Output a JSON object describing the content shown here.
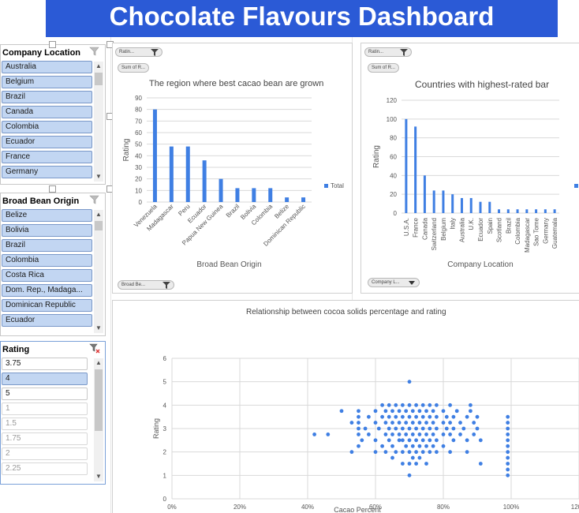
{
  "page": {
    "title": "Chocolate Flavours Dashboard"
  },
  "colors": {
    "accent": "#2b5ad6",
    "bar": "#3f7fe3",
    "slicer_selected": "#c2d6f2"
  },
  "slicers": {
    "company_location": {
      "title": "Company Location",
      "items": [
        "Australia",
        "Belgium",
        "Brazil",
        "Canada",
        "Colombia",
        "Ecuador",
        "France",
        "Germany"
      ]
    },
    "broad_bean_origin": {
      "title": "Broad Bean Origin",
      "items": [
        "Belize",
        "Bolivia",
        "Brazil",
        "Colombia",
        "Costa Rica",
        "Dom. Rep., Madaga...",
        "Dominican Republic",
        "Ecuador"
      ]
    },
    "rating": {
      "title": "Rating",
      "items": [
        {
          "label": "3.75",
          "state": "plain"
        },
        {
          "label": "4",
          "state": "selected"
        },
        {
          "label": "5",
          "state": "plain"
        },
        {
          "label": "1",
          "state": "dim"
        },
        {
          "label": "1.5",
          "state": "dim"
        },
        {
          "label": "1.75",
          "state": "dim"
        },
        {
          "label": "2",
          "state": "dim"
        },
        {
          "label": "2.25",
          "state": "dim"
        }
      ]
    }
  },
  "field_buttons": {
    "chart1_rating": "Ratin...",
    "chart1_sum": "Sum of R...",
    "chart1_axis": "Broad Be...",
    "chart2_rating": "Ratin...",
    "chart2_sum": "Sum of R...",
    "chart2_axis": "Company L..."
  },
  "chart_data": [
    {
      "type": "bar",
      "title": "The region where best cacao bean are grown",
      "xlabel": "Broad Bean Origin",
      "ylabel": "Rating",
      "ylim": [
        0,
        90
      ],
      "yticks": [
        0,
        10,
        20,
        30,
        40,
        50,
        60,
        70,
        80,
        90
      ],
      "categories": [
        "Venezuela",
        "Madagascar",
        "Peru",
        "Ecuador",
        "Papua New Guinea",
        "Brazil",
        "Bolivia",
        "Colombia",
        "Belize",
        "Dominican Republic"
      ],
      "series": [
        {
          "name": "Total",
          "values": [
            80,
            48,
            48,
            36,
            20,
            12,
            12,
            12,
            4,
            4
          ]
        }
      ],
      "legend": "right",
      "grid": true
    },
    {
      "type": "bar",
      "title": "Countries with highest-rated bar",
      "xlabel": "Company Location",
      "ylabel": "Rating",
      "ylim": [
        0,
        120
      ],
      "yticks": [
        0,
        20,
        40,
        60,
        80,
        100,
        120
      ],
      "categories": [
        "U.S.A.",
        "France",
        "Canada",
        "Switzerland",
        "Belgium",
        "Italy",
        "Australia",
        "U.K.",
        "Ecuador",
        "Spain",
        "Scotland",
        "Brazil",
        "Colombia",
        "Madagascar",
        "Sao Tome",
        "Germany",
        "Guatemala"
      ],
      "series": [
        {
          "name": "T",
          "values": [
            100,
            92,
            40,
            24,
            24,
            20,
            16,
            16,
            12,
            12,
            4,
            4,
            4,
            4,
            4,
            4,
            4
          ]
        }
      ],
      "legend": "right",
      "grid": true
    },
    {
      "type": "scatter",
      "title": "Relationship between cocoa solids percentage and rating",
      "xlabel": "Cacao Percent",
      "ylabel": "Rating",
      "xlim": [
        0,
        1.2
      ],
      "ylim": [
        0,
        6
      ],
      "xticks": [
        "0%",
        "20%",
        "40%",
        "60%",
        "80%",
        "100%",
        "120%"
      ],
      "yticks": [
        0,
        1,
        2,
        3,
        4,
        5,
        6
      ],
      "grid": true,
      "points": [
        [
          0.42,
          2.75
        ],
        [
          0.46,
          2.75
        ],
        [
          0.5,
          3.75
        ],
        [
          0.53,
          2.0
        ],
        [
          0.53,
          3.25
        ],
        [
          0.55,
          2.25
        ],
        [
          0.55,
          2.75
        ],
        [
          0.55,
          3.0
        ],
        [
          0.55,
          3.25
        ],
        [
          0.55,
          3.5
        ],
        [
          0.55,
          3.75
        ],
        [
          0.56,
          2.5
        ],
        [
          0.57,
          3.0
        ],
        [
          0.58,
          2.75
        ],
        [
          0.58,
          3.5
        ],
        [
          0.6,
          2.0
        ],
        [
          0.6,
          2.5
        ],
        [
          0.6,
          3.25
        ],
        [
          0.6,
          3.75
        ],
        [
          0.61,
          3.0
        ],
        [
          0.62,
          2.25
        ],
        [
          0.62,
          3.5
        ],
        [
          0.62,
          4.0
        ],
        [
          0.63,
          2.0
        ],
        [
          0.63,
          2.75
        ],
        [
          0.63,
          3.25
        ],
        [
          0.63,
          3.75
        ],
        [
          0.64,
          2.5
        ],
        [
          0.64,
          3.0
        ],
        [
          0.64,
          3.5
        ],
        [
          0.64,
          4.0
        ],
        [
          0.65,
          1.75
        ],
        [
          0.65,
          2.25
        ],
        [
          0.65,
          2.75
        ],
        [
          0.65,
          3.25
        ],
        [
          0.65,
          3.75
        ],
        [
          0.66,
          2.0
        ],
        [
          0.66,
          3.0
        ],
        [
          0.66,
          3.5
        ],
        [
          0.66,
          4.0
        ],
        [
          0.67,
          2.5
        ],
        [
          0.67,
          2.75
        ],
        [
          0.67,
          3.25
        ],
        [
          0.67,
          3.75
        ],
        [
          0.68,
          1.5
        ],
        [
          0.68,
          2.0
        ],
        [
          0.68,
          2.5
        ],
        [
          0.68,
          3.0
        ],
        [
          0.68,
          3.5
        ],
        [
          0.68,
          4.0
        ],
        [
          0.69,
          2.25
        ],
        [
          0.69,
          2.75
        ],
        [
          0.69,
          3.25
        ],
        [
          0.69,
          3.75
        ],
        [
          0.7,
          1.0
        ],
        [
          0.7,
          1.5
        ],
        [
          0.7,
          2.0
        ],
        [
          0.7,
          2.5
        ],
        [
          0.7,
          3.0
        ],
        [
          0.7,
          3.5
        ],
        [
          0.7,
          4.0
        ],
        [
          0.7,
          5.0
        ],
        [
          0.71,
          1.75
        ],
        [
          0.71,
          2.25
        ],
        [
          0.71,
          2.75
        ],
        [
          0.71,
          3.25
        ],
        [
          0.71,
          3.75
        ],
        [
          0.72,
          1.5
        ],
        [
          0.72,
          2.0
        ],
        [
          0.72,
          2.5
        ],
        [
          0.72,
          3.0
        ],
        [
          0.72,
          3.5
        ],
        [
          0.72,
          4.0
        ],
        [
          0.73,
          1.75
        ],
        [
          0.73,
          2.25
        ],
        [
          0.73,
          2.75
        ],
        [
          0.73,
          3.25
        ],
        [
          0.73,
          3.75
        ],
        [
          0.74,
          2.0
        ],
        [
          0.74,
          2.5
        ],
        [
          0.74,
          3.0
        ],
        [
          0.74,
          3.5
        ],
        [
          0.74,
          4.0
        ],
        [
          0.75,
          1.5
        ],
        [
          0.75,
          2.25
        ],
        [
          0.75,
          2.75
        ],
        [
          0.75,
          3.25
        ],
        [
          0.75,
          3.75
        ],
        [
          0.76,
          2.0
        ],
        [
          0.76,
          2.5
        ],
        [
          0.76,
          3.0
        ],
        [
          0.76,
          3.5
        ],
        [
          0.76,
          4.0
        ],
        [
          0.77,
          2.25
        ],
        [
          0.77,
          2.75
        ],
        [
          0.77,
          3.25
        ],
        [
          0.77,
          3.75
        ],
        [
          0.78,
          2.0
        ],
        [
          0.78,
          2.5
        ],
        [
          0.78,
          3.0
        ],
        [
          0.78,
          3.5
        ],
        [
          0.78,
          4.0
        ],
        [
          0.8,
          2.25
        ],
        [
          0.8,
          2.75
        ],
        [
          0.8,
          3.25
        ],
        [
          0.8,
          3.75
        ],
        [
          0.81,
          3.0
        ],
        [
          0.81,
          3.5
        ],
        [
          0.82,
          2.0
        ],
        [
          0.82,
          2.75
        ],
        [
          0.82,
          3.25
        ],
        [
          0.82,
          4.0
        ],
        [
          0.83,
          2.5
        ],
        [
          0.83,
          3.0
        ],
        [
          0.83,
          3.5
        ],
        [
          0.84,
          3.75
        ],
        [
          0.85,
          2.75
        ],
        [
          0.85,
          3.25
        ],
        [
          0.86,
          3.0
        ],
        [
          0.87,
          2.0
        ],
        [
          0.87,
          2.5
        ],
        [
          0.87,
          3.5
        ],
        [
          0.88,
          3.75
        ],
        [
          0.88,
          4.0
        ],
        [
          0.89,
          2.75
        ],
        [
          0.89,
          3.25
        ],
        [
          0.9,
          3.0
        ],
        [
          0.9,
          3.5
        ],
        [
          0.91,
          1.5
        ],
        [
          0.91,
          2.5
        ],
        [
          0.99,
          1.0
        ],
        [
          0.99,
          1.25
        ],
        [
          0.99,
          1.5
        ],
        [
          0.99,
          1.75
        ],
        [
          0.99,
          2.0
        ],
        [
          0.99,
          2.25
        ],
        [
          0.99,
          2.5
        ],
        [
          0.99,
          2.75
        ],
        [
          0.99,
          3.0
        ],
        [
          0.99,
          3.25
        ],
        [
          0.99,
          3.5
        ]
      ]
    }
  ]
}
